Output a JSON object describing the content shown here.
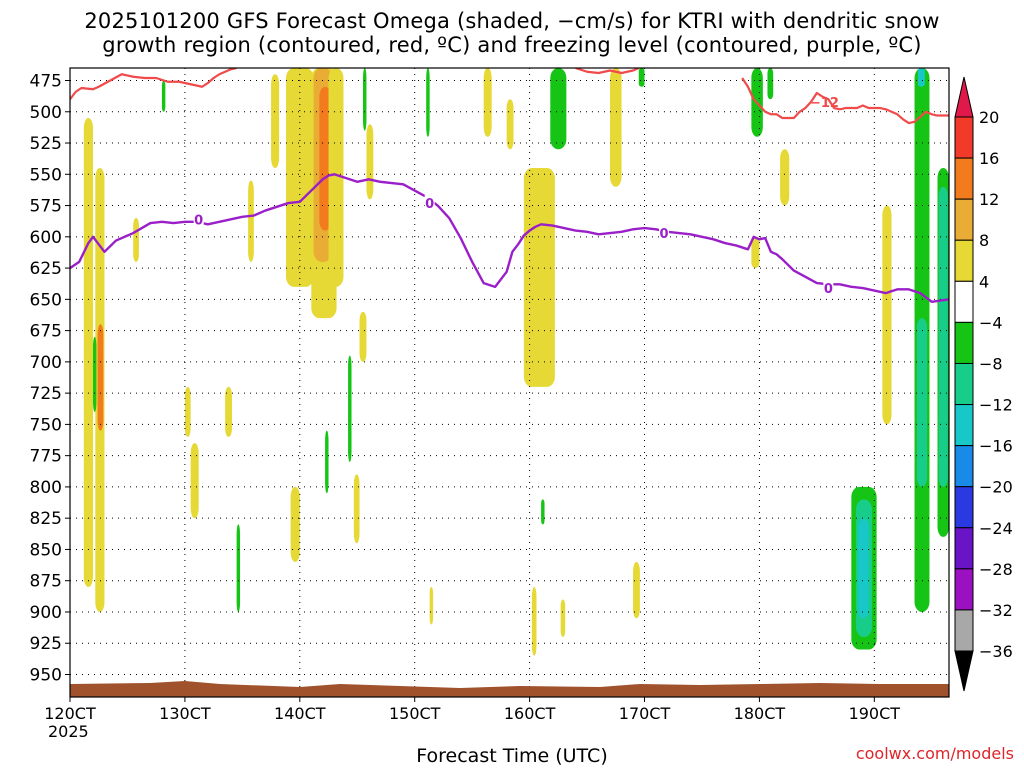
{
  "title_line1": "2025101200 GFS Forecast Omega (shaded, −cm/s) for KTRI with dendritic snow",
  "title_line2": "growth region (contoured, red, ºC) and freezing level (contoured, purple, ºC)",
  "x_axis_title": "Forecast Time (UTC)",
  "x_axis_year": "2025",
  "credit": "coolwx.com/models",
  "colors": {
    "dgz_contour": "#f04a4a",
    "freezing_contour": "#9a1fc9",
    "ground": "#a0522d",
    "grid": "#000000"
  },
  "chart_data": {
    "type": "heatmap",
    "title": "2025101200 GFS Forecast Omega (shaded, −cm/s) for KTRI with dendritic snow growth region (contoured, red, ºC) and freezing level (contoured, purple, ºC)",
    "xlabel": "Forecast Time (UTC)",
    "ylabel": "",
    "x_range": [
      12.0,
      19.65
    ],
    "y_range": [
      465,
      968
    ],
    "y_inverted": true,
    "x_ticks": [
      "120CT",
      "130CT",
      "140CT",
      "150CT",
      "160CT",
      "170CT",
      "180CT",
      "190CT"
    ],
    "x_tick_values": [
      12,
      13,
      14,
      15,
      16,
      17,
      18,
      19
    ],
    "y_ticks": [
      475,
      500,
      525,
      550,
      575,
      600,
      625,
      650,
      675,
      700,
      725,
      750,
      775,
      800,
      825,
      850,
      875,
      900,
      925,
      950
    ],
    "grid": true,
    "colorbar": {
      "levels": [
        "20",
        "16",
        "12",
        "8",
        "4",
        "−4",
        "−8",
        "−12",
        "−16",
        "−20",
        "−24",
        "−28",
        "−32",
        "−36"
      ],
      "level_values": [
        20,
        16,
        12,
        8,
        4,
        -4,
        -8,
        -12,
        -16,
        -20,
        -24,
        -28,
        -32,
        -36
      ],
      "colors": [
        "#e0194a",
        "#f23a2b",
        "#f27b1e",
        "#e9ad35",
        "#e6d936",
        "#ffffff",
        "#16c416",
        "#18cc8a",
        "#18c8c8",
        "#1a8ae8",
        "#2a3ae0",
        "#6a14c8",
        "#9b10c0",
        "#a8a8a8",
        "#000000"
      ],
      "placement": "right"
    },
    "freezing_level": {
      "name": "0",
      "x": [
        12.0,
        12.08,
        12.16,
        12.2,
        12.3,
        12.4,
        12.55,
        12.7,
        12.8,
        12.9,
        13.0,
        13.1,
        13.2,
        13.3,
        13.4,
        13.5,
        13.6,
        13.7,
        13.8,
        13.9,
        14.0,
        14.1,
        14.2,
        14.25,
        14.3,
        14.4,
        14.5,
        14.6,
        14.7,
        14.8,
        14.9,
        15.0,
        15.1,
        15.2,
        15.3,
        15.4,
        15.5,
        15.6,
        15.7,
        15.8,
        15.85,
        15.9,
        15.95,
        16.0,
        16.05,
        16.1,
        16.2,
        16.3,
        16.4,
        16.5,
        16.6,
        16.7,
        16.8,
        16.9,
        17.0,
        17.1,
        17.2,
        17.3,
        17.4,
        17.5,
        17.6,
        17.7,
        17.8,
        17.9,
        17.95,
        18.0,
        18.05,
        18.1,
        18.15,
        18.2,
        18.3,
        18.4,
        18.5,
        18.6,
        18.7,
        18.8,
        18.9,
        19.0,
        19.1,
        19.2,
        19.3,
        19.4,
        19.5,
        19.65
      ],
      "y": [
        625,
        620,
        605,
        600,
        612,
        603,
        597,
        589,
        588,
        589,
        588,
        588,
        590,
        588,
        586,
        584,
        583,
        579,
        576,
        573,
        572,
        563,
        554,
        551,
        550,
        553,
        556,
        554,
        556,
        557,
        558,
        563,
        568,
        575,
        585,
        601,
        620,
        637,
        640,
        628,
        612,
        606,
        599,
        595,
        592,
        590,
        591,
        593,
        595,
        596,
        598,
        597,
        596,
        594,
        593,
        594,
        596,
        597,
        598,
        600,
        602,
        605,
        607,
        610,
        600,
        602,
        601,
        612,
        614,
        618,
        627,
        632,
        637,
        638,
        638,
        640,
        641,
        643,
        645,
        642,
        642,
        645,
        652,
        650
      ],
      "label": "0"
    },
    "dgz_contour": {
      "name": "-12",
      "segments": [
        {
          "x": [
            12.0,
            12.05,
            12.1,
            12.2,
            12.25,
            12.35,
            12.45,
            12.55,
            12.65,
            12.75,
            12.85,
            12.95,
            13.05,
            13.15,
            13.2,
            13.25,
            13.3,
            13.35,
            13.4,
            13.45
          ],
          "y": [
            490,
            484,
            481,
            482,
            480,
            475,
            470,
            472,
            473,
            473,
            476,
            476,
            478,
            480,
            477,
            473,
            470,
            468,
            466,
            465
          ]
        },
        {
          "x": [
            16.4,
            16.5,
            16.6,
            16.7,
            16.8,
            16.9,
            16.95
          ],
          "y": [
            465,
            468,
            469,
            467,
            469,
            467,
            465
          ]
        },
        {
          "x": [
            17.85,
            17.9,
            17.95,
            18.0,
            18.05,
            18.1,
            18.15,
            18.2,
            18.25,
            18.3,
            18.35,
            18.4,
            18.45,
            18.5,
            18.55,
            18.6,
            18.65,
            18.7,
            18.75,
            18.8,
            18.85,
            18.9,
            18.95,
            19.0,
            19.05,
            19.1,
            19.15,
            19.2,
            19.25,
            19.3,
            19.35,
            19.4,
            19.45,
            19.5,
            19.55,
            19.6,
            19.65
          ],
          "y": [
            473,
            480,
            490,
            495,
            500,
            502,
            502,
            505,
            505,
            505,
            500,
            497,
            492,
            485,
            488,
            490,
            497,
            498,
            497,
            497,
            497,
            495,
            497,
            497,
            497,
            498,
            500,
            502,
            506,
            509,
            508,
            504,
            500,
            502,
            503,
            503,
            503
          ]
        }
      ],
      "label": "−12"
    },
    "omega_regions": [
      {
        "color": "#e6d936",
        "x0": 12.12,
        "x1": 12.2,
        "y0": 505,
        "y1": 880
      },
      {
        "color": "#e6d936",
        "x0": 12.22,
        "x1": 12.3,
        "y0": 545,
        "y1": 900
      },
      {
        "color": "#f27b1e",
        "x0": 12.24,
        "x1": 12.29,
        "y0": 670,
        "y1": 755
      },
      {
        "color": "#e6d936",
        "x0": 12.55,
        "x1": 12.6,
        "y0": 585,
        "y1": 620
      },
      {
        "color": "#e6d936",
        "x0": 13.0,
        "x1": 13.05,
        "y0": 720,
        "y1": 760
      },
      {
        "color": "#e6d936",
        "x0": 13.05,
        "x1": 13.12,
        "y0": 765,
        "y1": 825
      },
      {
        "color": "#e6d936",
        "x0": 13.35,
        "x1": 13.41,
        "y0": 720,
        "y1": 760
      },
      {
        "color": "#e6d936",
        "x0": 13.55,
        "x1": 13.6,
        "y0": 555,
        "y1": 620
      },
      {
        "color": "#e6d936",
        "x0": 13.75,
        "x1": 13.82,
        "y0": 470,
        "y1": 545
      },
      {
        "color": "#e6d936",
        "x0": 13.88,
        "x1": 14.12,
        "y0": 465,
        "y1": 640
      },
      {
        "color": "#e6d936",
        "x0": 14.1,
        "x1": 14.32,
        "y0": 465,
        "y1": 665
      },
      {
        "color": "#e9ad35",
        "x0": 14.12,
        "x1": 14.28,
        "y0": 465,
        "y1": 620
      },
      {
        "color": "#f27b1e",
        "x0": 14.17,
        "x1": 14.27,
        "y0": 480,
        "y1": 595
      },
      {
        "color": "#e6d936",
        "x0": 14.25,
        "x1": 14.38,
        "y0": 465,
        "y1": 640
      },
      {
        "color": "#e6d936",
        "x0": 14.58,
        "x1": 14.64,
        "y0": 510,
        "y1": 570
      },
      {
        "color": "#e6d936",
        "x0": 14.52,
        "x1": 14.58,
        "y0": 660,
        "y1": 700
      },
      {
        "color": "#e6d936",
        "x0": 13.92,
        "x1": 14.0,
        "y0": 800,
        "y1": 860
      },
      {
        "color": "#e6d936",
        "x0": 14.47,
        "x1": 14.52,
        "y0": 790,
        "y1": 845
      },
      {
        "color": "#e6d936",
        "x0": 15.6,
        "x1": 15.67,
        "y0": 465,
        "y1": 520
      },
      {
        "color": "#e6d936",
        "x0": 15.8,
        "x1": 15.86,
        "y0": 490,
        "y1": 530
      },
      {
        "color": "#e6d936",
        "x0": 15.95,
        "x1": 16.22,
        "y0": 545,
        "y1": 720
      },
      {
        "color": "#e6d936",
        "x0": 16.02,
        "x1": 16.06,
        "y0": 880,
        "y1": 935
      },
      {
        "color": "#e6d936",
        "x0": 16.7,
        "x1": 16.8,
        "y0": 465,
        "y1": 560
      },
      {
        "color": "#e6d936",
        "x0": 16.9,
        "x1": 16.96,
        "y0": 860,
        "y1": 905
      },
      {
        "color": "#e6d936",
        "x0": 16.27,
        "x1": 16.31,
        "y0": 890,
        "y1": 920
      },
      {
        "color": "#e6d936",
        "x0": 18.18,
        "x1": 18.26,
        "y0": 530,
        "y1": 575
      },
      {
        "color": "#e6d936",
        "x0": 17.93,
        "x1": 18.0,
        "y0": 600,
        "y1": 625
      },
      {
        "color": "#e6d936",
        "x0": 19.07,
        "x1": 19.15,
        "y0": 575,
        "y1": 750
      },
      {
        "color": "#e6d936",
        "x0": 15.13,
        "x1": 15.16,
        "y0": 880,
        "y1": 910
      },
      {
        "color": "#16c416",
        "x0": 12.2,
        "x1": 12.23,
        "y0": 680,
        "y1": 740
      },
      {
        "color": "#16c416",
        "x0": 12.8,
        "x1": 12.83,
        "y0": 475,
        "y1": 500
      },
      {
        "color": "#16c416",
        "x0": 13.45,
        "x1": 13.48,
        "y0": 830,
        "y1": 900
      },
      {
        "color": "#16c416",
        "x0": 14.42,
        "x1": 14.45,
        "y0": 695,
        "y1": 780
      },
      {
        "color": "#16c416",
        "x0": 14.22,
        "x1": 14.25,
        "y0": 755,
        "y1": 805
      },
      {
        "color": "#16c416",
        "x0": 14.55,
        "x1": 14.58,
        "y0": 465,
        "y1": 515
      },
      {
        "color": "#16c416",
        "x0": 15.1,
        "x1": 15.13,
        "y0": 465,
        "y1": 520
      },
      {
        "color": "#16c416",
        "x0": 16.1,
        "x1": 16.13,
        "y0": 810,
        "y1": 830
      },
      {
        "color": "#16c416",
        "x0": 16.18,
        "x1": 16.32,
        "y0": 465,
        "y1": 530
      },
      {
        "color": "#16c416",
        "x0": 16.95,
        "x1": 17.0,
        "y0": 465,
        "y1": 480
      },
      {
        "color": "#16c416",
        "x0": 17.93,
        "x1": 18.03,
        "y0": 465,
        "y1": 520
      },
      {
        "color": "#16c416",
        "x0": 18.07,
        "x1": 18.12,
        "y0": 465,
        "y1": 490
      },
      {
        "color": "#16c416",
        "x0": 18.8,
        "x1": 19.02,
        "y0": 800,
        "y1": 930
      },
      {
        "color": "#18cc8a",
        "x0": 18.84,
        "x1": 18.98,
        "y0": 810,
        "y1": 920
      },
      {
        "color": "#18c8c8",
        "x0": 18.86,
        "x1": 18.95,
        "y0": 825,
        "y1": 905
      },
      {
        "color": "#16c416",
        "x0": 19.35,
        "x1": 19.48,
        "y0": 465,
        "y1": 900
      },
      {
        "color": "#18cc8a",
        "x0": 19.37,
        "x1": 19.46,
        "y0": 665,
        "y1": 800
      },
      {
        "color": "#18c8c8",
        "x0": 19.38,
        "x1": 19.44,
        "y0": 465,
        "y1": 480
      },
      {
        "color": "#16c416",
        "x0": 19.55,
        "x1": 19.65,
        "y0": 545,
        "y1": 840
      },
      {
        "color": "#18cc8a",
        "x0": 19.56,
        "x1": 19.64,
        "y0": 560,
        "y1": 800
      }
    ]
  }
}
